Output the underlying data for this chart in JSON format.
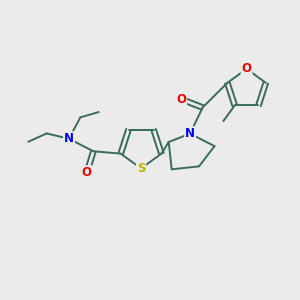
{
  "bg_color": "#ebebeb",
  "atom_colors": {
    "S": "#b8b800",
    "N": "#0000ee",
    "O": "#ee0000",
    "bond": "#3a6b5e"
  },
  "bond_color": "#3a6b5e",
  "font_size_atom": 8.5,
  "figsize": [
    3.0,
    3.0
  ],
  "dpi": 100
}
